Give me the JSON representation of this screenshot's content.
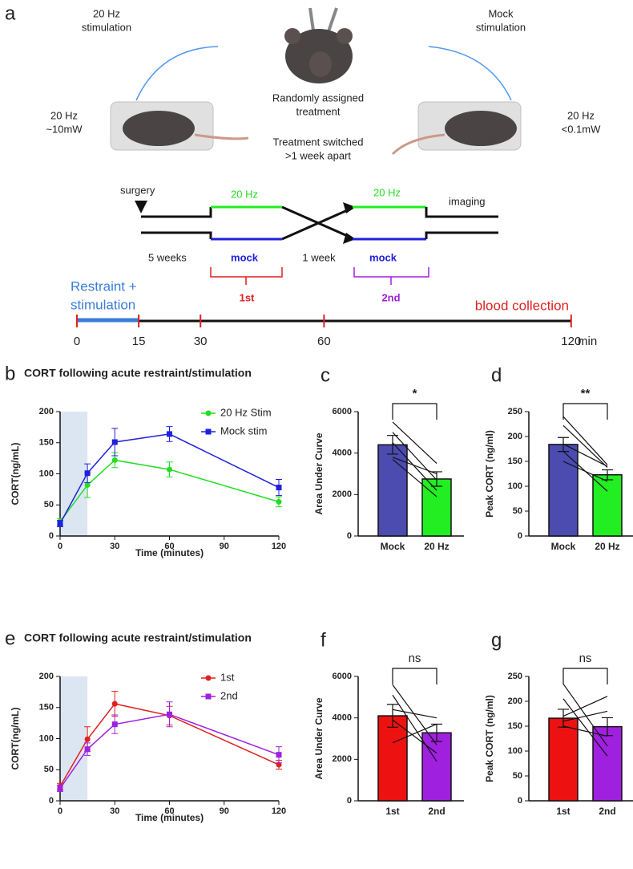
{
  "panel_a": {
    "label": "a",
    "left_stim": [
      "20 Hz",
      "stimulation"
    ],
    "right_stim": [
      "Mock",
      "stimulation"
    ],
    "left_power": [
      "20 Hz",
      "~10mW"
    ],
    "right_power": [
      "20 Hz",
      "<0.1mW"
    ],
    "random": [
      "Randomly assigned",
      "treatment"
    ],
    "switched": [
      "Treatment switched",
      ">1 week apart"
    ],
    "surgery": "surgery",
    "hz_first": "20 Hz",
    "hz_second": "20 Hz",
    "imaging": "imaging",
    "five_weeks": "5 weeks",
    "mock_first": "mock",
    "one_week": "1 week",
    "mock_second": "mock",
    "first": "1st",
    "second": "2nd",
    "restraint": [
      "Restraint +",
      "stimulation"
    ],
    "blood": "blood collection",
    "timeline_ticks": [
      0,
      15,
      30,
      60,
      120
    ],
    "timeline_unit": "min"
  },
  "chart_data": [
    {
      "type": "line",
      "label": "b",
      "title": "CORT following acute restraint/stimulation",
      "x_label": "Time (minutes)",
      "y_label": "CORT(ng/mL)",
      "shade": [
        0,
        15
      ],
      "xlim": [
        0,
        120
      ],
      "xticks": [
        0,
        30,
        60,
        90,
        120
      ],
      "ylim": [
        0,
        200
      ],
      "yticks": [
        0,
        50,
        100,
        150,
        200
      ],
      "legend": "upper right",
      "x": [
        0,
        15,
        30,
        60,
        120
      ],
      "series": [
        {
          "name": "20 Hz Stim",
          "color": "#22dd22",
          "marker": "circle",
          "values": [
            23,
            82,
            122,
            107,
            55
          ],
          "errors": [
            5,
            20,
            12,
            12,
            8
          ]
        },
        {
          "name": "Mock stim",
          "color": "#2020dd",
          "marker": "square",
          "values": [
            20,
            101,
            151,
            164,
            78
          ],
          "errors": [
            5,
            15,
            22,
            12,
            13
          ]
        }
      ]
    },
    {
      "type": "bar",
      "label": "c",
      "y_label": "Area Under Curve",
      "significance": "*",
      "categories": [
        "Mock",
        "20 Hz"
      ],
      "colors": [
        "#4b4bb0",
        "#22ee22"
      ],
      "values": [
        4400,
        2750
      ],
      "errors": [
        450,
        350
      ],
      "pairs": [
        [
          5500,
          3500
        ],
        [
          5000,
          2700
        ],
        [
          4500,
          2200
        ],
        [
          3800,
          3000
        ],
        [
          3700,
          1900
        ]
      ],
      "ylim": [
        0,
        6000
      ],
      "yticks": [
        0,
        2000,
        4000,
        6000
      ]
    },
    {
      "type": "bar",
      "label": "d",
      "y_label": "Peak CORT (ng/ml)",
      "significance": "**",
      "categories": [
        "Mock",
        "20 Hz"
      ],
      "colors": [
        "#4b4bb0",
        "#22ee22"
      ],
      "values": [
        184,
        123
      ],
      "errors": [
        14,
        10
      ],
      "pairs": [
        [
          240,
          143
        ],
        [
          222,
          138
        ],
        [
          185,
          140
        ],
        [
          150,
          110
        ],
        [
          170,
          90
        ]
      ],
      "ylim": [
        0,
        250
      ],
      "yticks": [
        0,
        50,
        100,
        150,
        200,
        250
      ]
    },
    {
      "type": "line",
      "label": "e",
      "title": "CORT following acute restraint/stimulation",
      "x_label": "Time (minutes)",
      "y_label": "CORT(ng/mL)",
      "shade": [
        0,
        15
      ],
      "xlim": [
        0,
        120
      ],
      "xticks": [
        0,
        30,
        60,
        90,
        120
      ],
      "ylim": [
        0,
        200
      ],
      "yticks": [
        0,
        50,
        100,
        150,
        200
      ],
      "legend": "upper right",
      "x": [
        0,
        15,
        30,
        60,
        120
      ],
      "series": [
        {
          "name": "1st",
          "color": "#e02020",
          "marker": "circle",
          "values": [
            23,
            99,
            156,
            137,
            58
          ],
          "errors": [
            5,
            20,
            20,
            15,
            7
          ]
        },
        {
          "name": "2nd",
          "color": "#a020e0",
          "marker": "square",
          "values": [
            20,
            83,
            123,
            139,
            74
          ],
          "errors": [
            5,
            10,
            15,
            20,
            13
          ]
        }
      ]
    },
    {
      "type": "bar",
      "label": "f",
      "y_label": "Area Under Curve",
      "significance": "ns",
      "categories": [
        "1st",
        "2nd"
      ],
      "colors": [
        "#ee1111",
        "#a020e0"
      ],
      "values": [
        4100,
        3280
      ],
      "errors": [
        550,
        420
      ],
      "pairs": [
        [
          5600,
          2700
        ],
        [
          5100,
          1900
        ],
        [
          4400,
          4000
        ],
        [
          3900,
          2300
        ],
        [
          2800,
          3700
        ]
      ],
      "ylim": [
        0,
        6000
      ],
      "yticks": [
        0,
        2000,
        4000,
        6000
      ]
    },
    {
      "type": "bar",
      "label": "g",
      "y_label": "Peak CORT (ng/ml)",
      "significance": "ns",
      "categories": [
        "1st",
        "2nd"
      ],
      "colors": [
        "#ee1111",
        "#a020e0"
      ],
      "values": [
        166,
        149
      ],
      "errors": [
        18,
        18
      ],
      "pairs": [
        [
          235,
          110
        ],
        [
          205,
          90
        ],
        [
          170,
          210
        ],
        [
          160,
          180
        ],
        [
          150,
          130
        ]
      ],
      "ylim": [
        0,
        250
      ],
      "yticks": [
        0,
        50,
        100,
        150,
        200,
        250
      ]
    }
  ]
}
